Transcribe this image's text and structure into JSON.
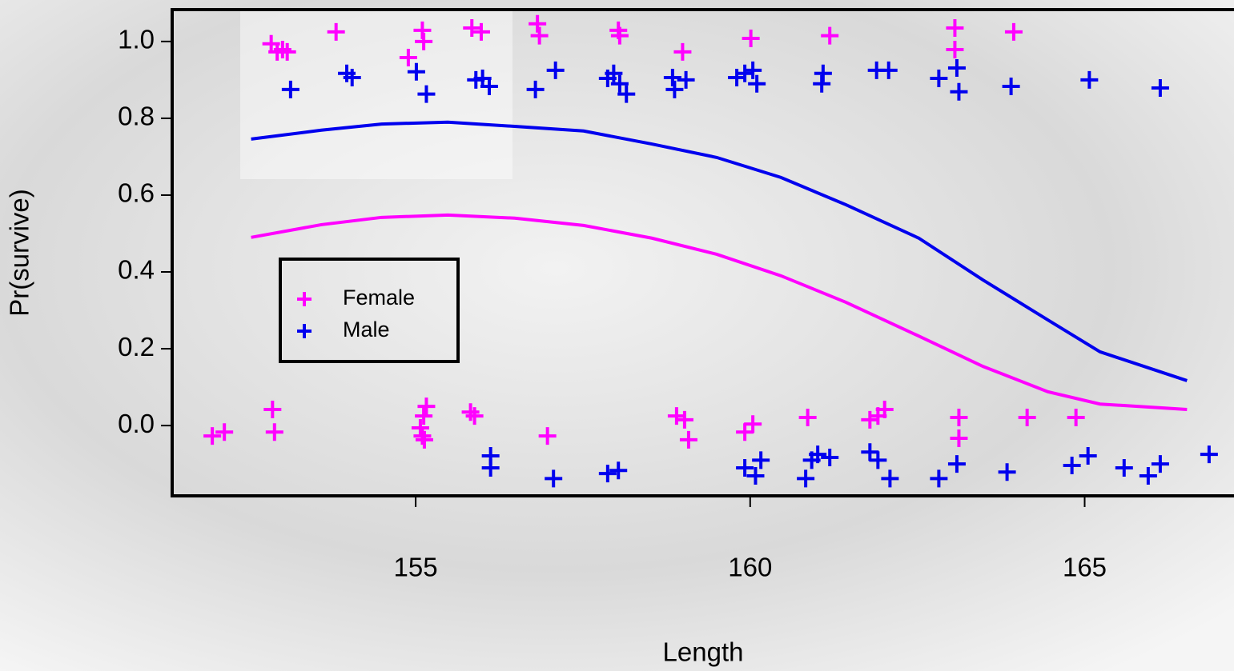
{
  "chart_data": {
    "type": "scatter",
    "x_label": "Length",
    "y_label": "Pr(survive)",
    "xlim": [
      151.36,
      167.4
    ],
    "ylim": [
      -0.183,
      1.083
    ],
    "xticks": [
      155,
      160,
      165
    ],
    "yticks": [
      {
        "value": 0,
        "label": "0.0"
      },
      {
        "value": 0.2,
        "label": "0.2"
      },
      {
        "value": 0.4,
        "label": "0.4"
      },
      {
        "value": 0.6,
        "label": "0.6"
      },
      {
        "value": 0.8,
        "label": "0.8"
      },
      {
        "value": 1,
        "label": "1.0"
      }
    ],
    "legend": "center-left",
    "series": [
      {
        "name": "Female",
        "color": "#ff00ff",
        "x": [
          152.84,
          152.93,
          153.01,
          153.08,
          153.81,
          154.89,
          155.1,
          155.12,
          155.84,
          155.98,
          156.82,
          156.85,
          158.03,
          158.05,
          158.99,
          160.01,
          161.19,
          163.06,
          163.06,
          163.94,
          151.96,
          152.14,
          152.86,
          152.89,
          155.07,
          155.1,
          155.12,
          155.16,
          155.13,
          155.82,
          155.88,
          156.97,
          158.9,
          159.02,
          159.08,
          159.92,
          160.04,
          160.86,
          161.79,
          161.91,
          162.01,
          163.12,
          163.12,
          164.14,
          164.87
        ],
        "y": [
          0.994,
          0.973,
          0.979,
          0.973,
          1.025,
          0.958,
          1.029,
          1.0,
          1.035,
          1.025,
          1.046,
          1.015,
          1.029,
          1.015,
          0.973,
          1.008,
          1.015,
          1.035,
          0.979,
          1.025,
          -0.027,
          -0.017,
          0.042,
          -0.017,
          -0.006,
          -0.027,
          0.025,
          0.05,
          -0.037,
          0.035,
          0.025,
          -0.027,
          0.025,
          0.015,
          -0.037,
          -0.017,
          0.004,
          0.021,
          0.015,
          0.025,
          0.042,
          0.021,
          -0.033,
          0.021,
          0.021
        ],
        "fit": {
          "x": [
            152.54,
            153.59,
            154.49,
            155.48,
            156.48,
            157.51,
            158.53,
            159.5,
            160.46,
            161.43,
            162.52,
            163.48,
            164.45,
            165.23,
            166.53
          ],
          "y": [
            0.49,
            0.523,
            0.542,
            0.548,
            0.54,
            0.521,
            0.488,
            0.446,
            0.39,
            0.321,
            0.233,
            0.154,
            0.088,
            0.056,
            0.042
          ]
        }
      },
      {
        "name": "Male",
        "color": "#0000ee",
        "x": [
          153.13,
          153.97,
          154.05,
          155.01,
          155.16,
          155.9,
          156.0,
          156.1,
          156.79,
          157.09,
          157.87,
          157.96,
          158.05,
          158.15,
          158.84,
          158.87,
          159.04,
          159.8,
          159.92,
          160.04,
          160.1,
          161.07,
          161.09,
          161.89,
          162.07,
          162.82,
          163.09,
          163.12,
          163.9,
          165.07,
          166.13,
          156.12,
          156.12,
          157.06,
          157.87,
          158.03,
          159.92,
          160.08,
          160.16,
          160.83,
          160.92,
          161.01,
          161.19,
          161.79,
          161.91,
          162.09,
          162.82,
          163.09,
          163.84,
          164.81,
          165.05,
          165.59,
          165.95,
          166.13,
          166.86
        ],
        "y": [
          0.875,
          0.917,
          0.906,
          0.921,
          0.863,
          0.9,
          0.904,
          0.883,
          0.875,
          0.925,
          0.904,
          0.917,
          0.89,
          0.863,
          0.906,
          0.875,
          0.9,
          0.906,
          0.917,
          0.925,
          0.89,
          0.89,
          0.917,
          0.925,
          0.925,
          0.904,
          0.931,
          0.869,
          0.883,
          0.9,
          0.879,
          -0.079,
          -0.11,
          -0.138,
          -0.125,
          -0.117,
          -0.11,
          -0.131,
          -0.09,
          -0.138,
          -0.09,
          -0.075,
          -0.083,
          -0.069,
          -0.09,
          -0.138,
          -0.138,
          -0.1,
          -0.121,
          -0.104,
          -0.079,
          -0.11,
          -0.131,
          -0.1,
          -0.075
        ],
        "fit": {
          "x": [
            152.54,
            153.59,
            154.49,
            155.48,
            156.48,
            157.51,
            158.53,
            159.5,
            160.46,
            161.43,
            162.52,
            163.48,
            164.45,
            165.23,
            166.53
          ],
          "y": [
            0.746,
            0.769,
            0.785,
            0.79,
            0.779,
            0.767,
            0.733,
            0.698,
            0.646,
            0.575,
            0.488,
            0.379,
            0.275,
            0.192,
            0.117
          ]
        }
      }
    ]
  }
}
